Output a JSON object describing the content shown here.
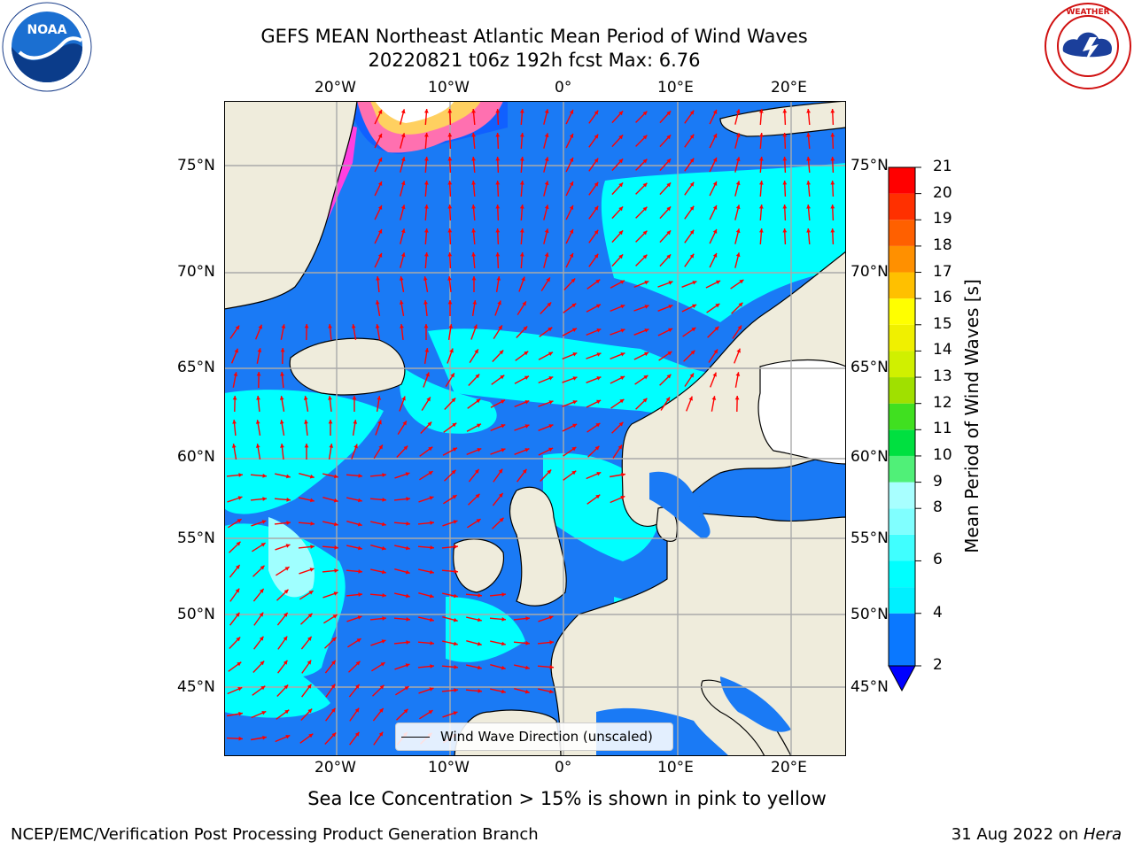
{
  "title_line1": "GEFS MEAN Northeast Atlantic Mean Period of Wind Waves",
  "title_line2": "20220821 t06z 192h fcst   Max: 6.76",
  "logos": {
    "left": {
      "name": "NOAA",
      "ring_text": "NATIONAL OCEANIC AND ATMOSPHERIC ADMINISTRATION · U.S. DEPARTMENT OF COMMERCE"
    },
    "right": {
      "name": "NATIONAL WEATHER SERVICE"
    }
  },
  "colors": {
    "land": "#efecdc",
    "ocean_dark": "#1a7af5",
    "ocean_light": "#00ffff",
    "ocean_pale": "#a0ffff",
    "arrow": "#ff0000",
    "grid": "#aaaaaa"
  },
  "map": {
    "lon_labels": [
      "20°W",
      "10°W",
      "0°",
      "10°E",
      "20°E"
    ],
    "lat_labels": [
      "75°N",
      "70°N",
      "65°N",
      "60°N",
      "55°N",
      "50°N",
      "45°N"
    ],
    "legend_text": "Wind Wave Direction (unscaled)"
  },
  "colorbar": {
    "label": "Mean Period of Wind Waves [s]",
    "ticks": [
      "21",
      "20",
      "19",
      "18",
      "17",
      "16",
      "15",
      "14",
      "13",
      "12",
      "11",
      "10",
      "9",
      "8",
      "6",
      "4",
      "2"
    ],
    "bins": [
      {
        "from": 2,
        "to": 4,
        "color": "#0a78ff"
      },
      {
        "from": 4,
        "to": 5,
        "color": "#00f0ff"
      },
      {
        "from": 5,
        "to": 6,
        "color": "#00ffff"
      },
      {
        "from": 6,
        "to": 7,
        "color": "#40ffff"
      },
      {
        "from": 7,
        "to": 8,
        "color": "#80ffff"
      },
      {
        "from": 8,
        "to": 9,
        "color": "#a8ffff"
      },
      {
        "from": 9,
        "to": 10,
        "color": "#50f078"
      },
      {
        "from": 10,
        "to": 11,
        "color": "#00e040"
      },
      {
        "from": 11,
        "to": 12,
        "color": "#40e020"
      },
      {
        "from": 12,
        "to": 13,
        "color": "#a0e000"
      },
      {
        "from": 13,
        "to": 14,
        "color": "#d0f000"
      },
      {
        "from": 14,
        "to": 15,
        "color": "#f0f000"
      },
      {
        "from": 15,
        "to": 16,
        "color": "#ffff00"
      },
      {
        "from": 16,
        "to": 17,
        "color": "#ffc000"
      },
      {
        "from": 17,
        "to": 18,
        "color": "#ff9000"
      },
      {
        "from": 18,
        "to": 19,
        "color": "#ff6000"
      },
      {
        "from": 19,
        "to": 20,
        "color": "#ff3000"
      },
      {
        "from": 20,
        "to": 21,
        "color": "#ff0000"
      }
    ],
    "under_color": "#0000ff"
  },
  "ice_note": "Sea Ice Concentration > 15% is shown in pink to yellow",
  "footer_left": "NCEP/EMC/Verification Post Processing Product Generation Branch",
  "footer_date": "31 Aug 2022 on ",
  "footer_machine": "Hera"
}
